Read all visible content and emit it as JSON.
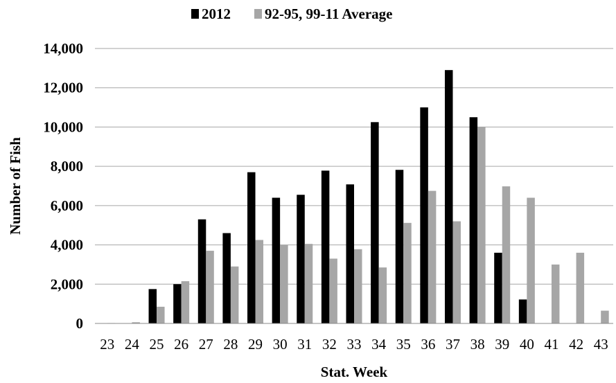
{
  "chart_data": {
    "type": "bar",
    "categories": [
      "23",
      "24",
      "25",
      "26",
      "27",
      "28",
      "29",
      "30",
      "31",
      "32",
      "33",
      "34",
      "35",
      "36",
      "37",
      "38",
      "39",
      "40",
      "41",
      "42",
      "43"
    ],
    "series": [
      {
        "name": "2012",
        "color": "#000000",
        "values": [
          0,
          0,
          1750,
          2000,
          5300,
          4600,
          7700,
          6400,
          6550,
          7780,
          7080,
          10250,
          7820,
          11000,
          12900,
          10500,
          3600,
          1220,
          0,
          0,
          0
        ]
      },
      {
        "name": "92-95, 99-11 Average",
        "color": "#a6a6a6",
        "values": [
          20,
          60,
          850,
          2150,
          3700,
          2900,
          4250,
          4000,
          4050,
          3300,
          3780,
          2850,
          5120,
          6750,
          5200,
          10000,
          6980,
          6400,
          3000,
          3600,
          650
        ]
      }
    ],
    "xlabel": "Stat. Week",
    "ylabel": "Number of Fish",
    "ylim": [
      0,
      14000
    ],
    "yticks": [
      "0",
      "2,000",
      "4,000",
      "6,000",
      "8,000",
      "10,000",
      "12,000",
      "14,000"
    ],
    "grid": true,
    "legend": "top"
  }
}
